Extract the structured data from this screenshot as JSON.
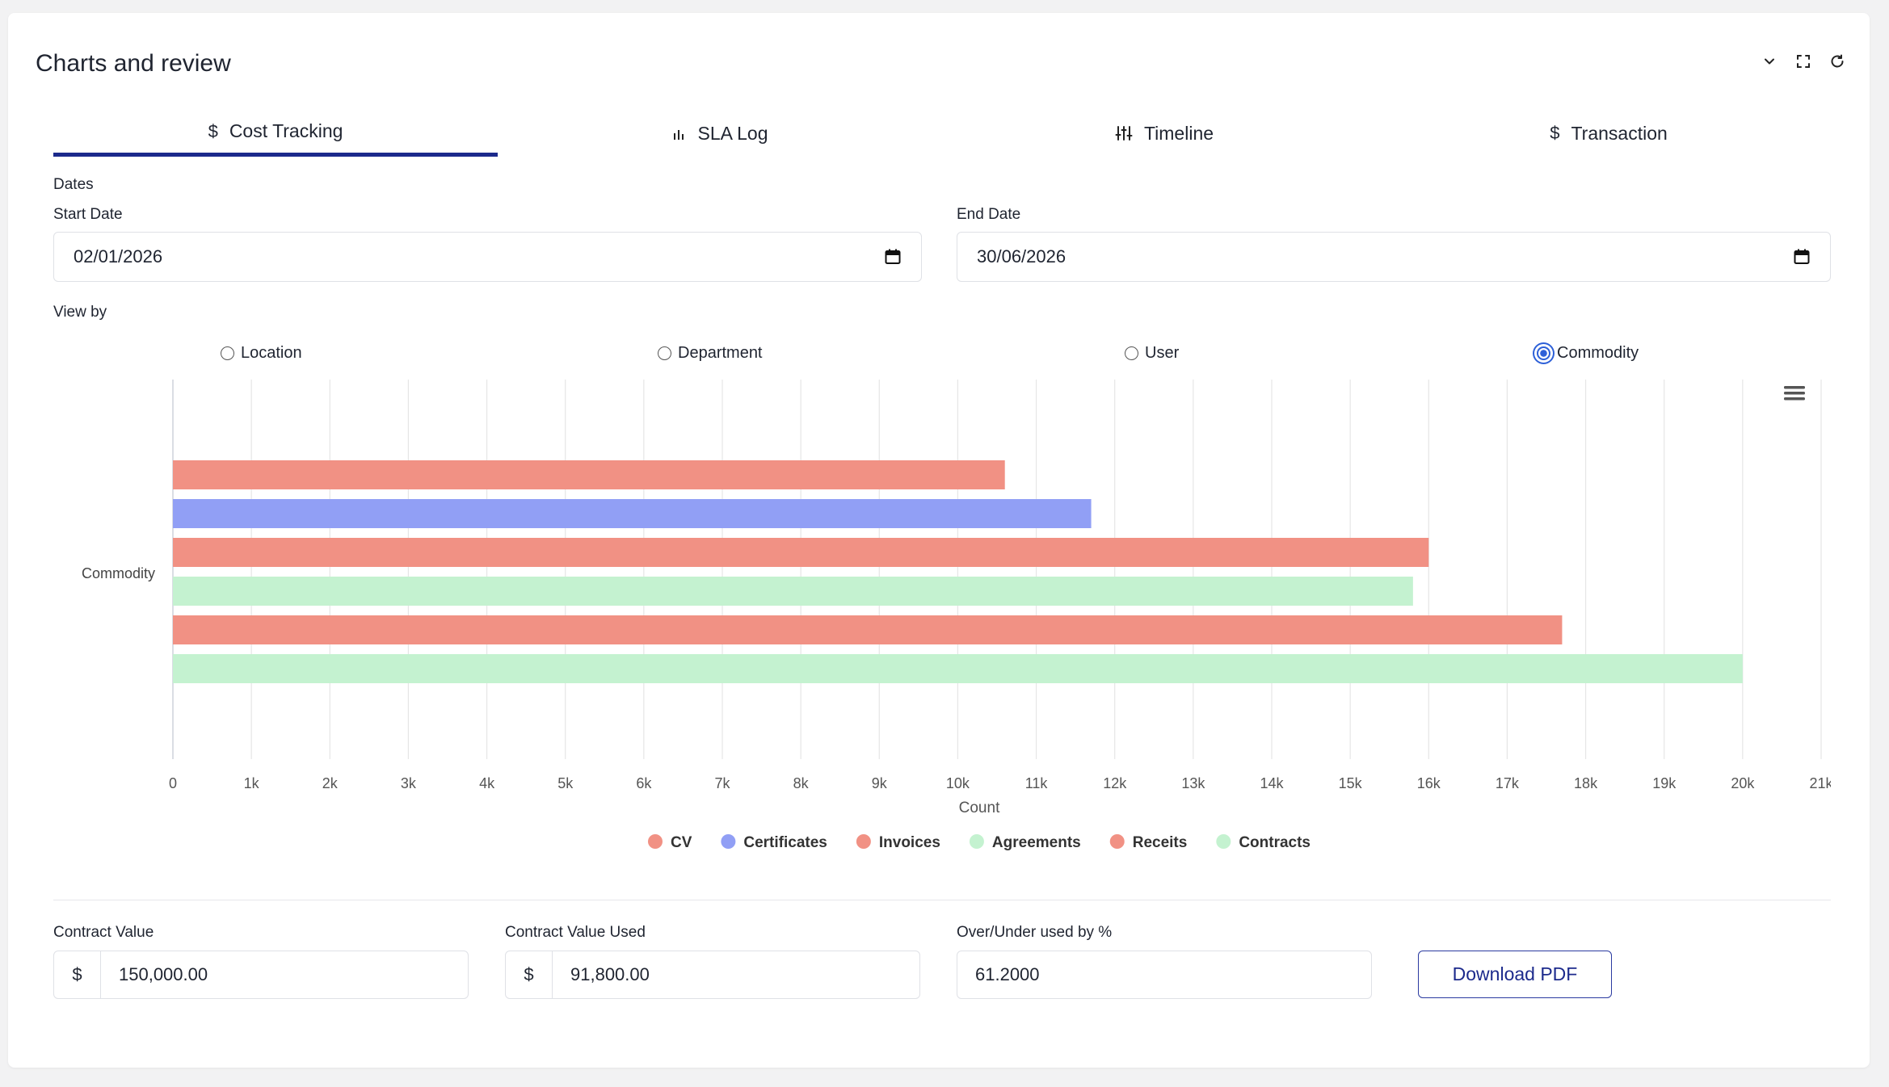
{
  "card": {
    "title": "Charts and review"
  },
  "tabs": [
    {
      "label": "Cost Tracking",
      "icon": "dollar-icon",
      "active": true
    },
    {
      "label": "SLA Log",
      "icon": "bar-chart-icon",
      "active": false
    },
    {
      "label": "Timeline",
      "icon": "sliders-icon",
      "active": false
    },
    {
      "label": "Transaction",
      "icon": "dollar-icon",
      "active": false
    }
  ],
  "dates": {
    "section_label": "Dates",
    "start_label": "Start Date",
    "start_value": "02/01/2026",
    "end_label": "End Date",
    "end_value": "30/06/2026"
  },
  "view_by": {
    "label": "View by",
    "options": [
      {
        "label": "Location",
        "checked": false
      },
      {
        "label": "Department",
        "checked": false
      },
      {
        "label": "User",
        "checked": false
      },
      {
        "label": "Commodity",
        "checked": true
      }
    ]
  },
  "chart_data": {
    "type": "bar",
    "orientation": "horizontal",
    "categories": [
      "Commodity"
    ],
    "series": [
      {
        "name": "CV",
        "values": [
          10600
        ],
        "color": "#f19184"
      },
      {
        "name": "Certificates",
        "values": [
          11700
        ],
        "color": "#919ff5"
      },
      {
        "name": "Invoices",
        "values": [
          16000
        ],
        "color": "#f19184"
      },
      {
        "name": "Agreements",
        "values": [
          15800
        ],
        "color": "#c4f2d0"
      },
      {
        "name": "Receits",
        "values": [
          17700
        ],
        "color": "#f19184"
      },
      {
        "name": "Contracts",
        "values": [
          20000
        ],
        "color": "#c4f2d0"
      }
    ],
    "xlabel": "Count",
    "xlim": [
      0,
      21000
    ],
    "xticks": [
      "0",
      "1k",
      "2k",
      "3k",
      "4k",
      "5k",
      "6k",
      "7k",
      "8k",
      "9k",
      "10k",
      "11k",
      "12k",
      "13k",
      "14k",
      "15k",
      "16k",
      "17k",
      "18k",
      "19k",
      "20k",
      "21k"
    ],
    "grid": true,
    "legend": "bottom"
  },
  "totals": {
    "contract_value_label": "Contract Value",
    "contract_value_currency": "$",
    "contract_value": "150,000.00",
    "contract_used_label": "Contract Value Used",
    "contract_used_currency": "$",
    "contract_used": "91,800.00",
    "over_under_label": "Over/Under used by %",
    "over_under_value": "61.2000",
    "download_label": "Download PDF"
  }
}
